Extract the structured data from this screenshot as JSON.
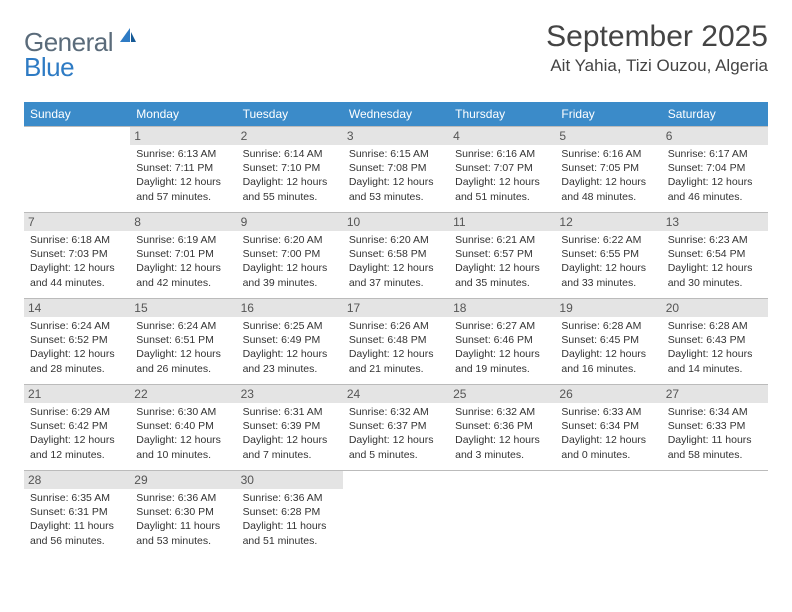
{
  "logo": {
    "text1": "General",
    "text2": "Blue"
  },
  "header": {
    "month_title": "September 2025",
    "location": "Ait Yahia, Tizi Ouzou, Algeria"
  },
  "day_headers": [
    "Sunday",
    "Monday",
    "Tuesday",
    "Wednesday",
    "Thursday",
    "Friday",
    "Saturday"
  ],
  "colors": {
    "header_bg": "#3b8bc9",
    "header_fg": "#ffffff",
    "daynum_bg": "#e4e4e4",
    "border": "#bbbbbb",
    "logo_gray": "#5a6b7a",
    "logo_blue": "#2e7bc4"
  },
  "weeks": [
    [
      {
        "n": "",
        "sunrise": "",
        "sunset": "",
        "daylight": "",
        "empty": true
      },
      {
        "n": "1",
        "sunrise": "Sunrise: 6:13 AM",
        "sunset": "Sunset: 7:11 PM",
        "daylight": "Daylight: 12 hours and 57 minutes."
      },
      {
        "n": "2",
        "sunrise": "Sunrise: 6:14 AM",
        "sunset": "Sunset: 7:10 PM",
        "daylight": "Daylight: 12 hours and 55 minutes."
      },
      {
        "n": "3",
        "sunrise": "Sunrise: 6:15 AM",
        "sunset": "Sunset: 7:08 PM",
        "daylight": "Daylight: 12 hours and 53 minutes."
      },
      {
        "n": "4",
        "sunrise": "Sunrise: 6:16 AM",
        "sunset": "Sunset: 7:07 PM",
        "daylight": "Daylight: 12 hours and 51 minutes."
      },
      {
        "n": "5",
        "sunrise": "Sunrise: 6:16 AM",
        "sunset": "Sunset: 7:05 PM",
        "daylight": "Daylight: 12 hours and 48 minutes."
      },
      {
        "n": "6",
        "sunrise": "Sunrise: 6:17 AM",
        "sunset": "Sunset: 7:04 PM",
        "daylight": "Daylight: 12 hours and 46 minutes."
      }
    ],
    [
      {
        "n": "7",
        "sunrise": "Sunrise: 6:18 AM",
        "sunset": "Sunset: 7:03 PM",
        "daylight": "Daylight: 12 hours and 44 minutes."
      },
      {
        "n": "8",
        "sunrise": "Sunrise: 6:19 AM",
        "sunset": "Sunset: 7:01 PM",
        "daylight": "Daylight: 12 hours and 42 minutes."
      },
      {
        "n": "9",
        "sunrise": "Sunrise: 6:20 AM",
        "sunset": "Sunset: 7:00 PM",
        "daylight": "Daylight: 12 hours and 39 minutes."
      },
      {
        "n": "10",
        "sunrise": "Sunrise: 6:20 AM",
        "sunset": "Sunset: 6:58 PM",
        "daylight": "Daylight: 12 hours and 37 minutes."
      },
      {
        "n": "11",
        "sunrise": "Sunrise: 6:21 AM",
        "sunset": "Sunset: 6:57 PM",
        "daylight": "Daylight: 12 hours and 35 minutes."
      },
      {
        "n": "12",
        "sunrise": "Sunrise: 6:22 AM",
        "sunset": "Sunset: 6:55 PM",
        "daylight": "Daylight: 12 hours and 33 minutes."
      },
      {
        "n": "13",
        "sunrise": "Sunrise: 6:23 AM",
        "sunset": "Sunset: 6:54 PM",
        "daylight": "Daylight: 12 hours and 30 minutes."
      }
    ],
    [
      {
        "n": "14",
        "sunrise": "Sunrise: 6:24 AM",
        "sunset": "Sunset: 6:52 PM",
        "daylight": "Daylight: 12 hours and 28 minutes."
      },
      {
        "n": "15",
        "sunrise": "Sunrise: 6:24 AM",
        "sunset": "Sunset: 6:51 PM",
        "daylight": "Daylight: 12 hours and 26 minutes."
      },
      {
        "n": "16",
        "sunrise": "Sunrise: 6:25 AM",
        "sunset": "Sunset: 6:49 PM",
        "daylight": "Daylight: 12 hours and 23 minutes."
      },
      {
        "n": "17",
        "sunrise": "Sunrise: 6:26 AM",
        "sunset": "Sunset: 6:48 PM",
        "daylight": "Daylight: 12 hours and 21 minutes."
      },
      {
        "n": "18",
        "sunrise": "Sunrise: 6:27 AM",
        "sunset": "Sunset: 6:46 PM",
        "daylight": "Daylight: 12 hours and 19 minutes."
      },
      {
        "n": "19",
        "sunrise": "Sunrise: 6:28 AM",
        "sunset": "Sunset: 6:45 PM",
        "daylight": "Daylight: 12 hours and 16 minutes."
      },
      {
        "n": "20",
        "sunrise": "Sunrise: 6:28 AM",
        "sunset": "Sunset: 6:43 PM",
        "daylight": "Daylight: 12 hours and 14 minutes."
      }
    ],
    [
      {
        "n": "21",
        "sunrise": "Sunrise: 6:29 AM",
        "sunset": "Sunset: 6:42 PM",
        "daylight": "Daylight: 12 hours and 12 minutes."
      },
      {
        "n": "22",
        "sunrise": "Sunrise: 6:30 AM",
        "sunset": "Sunset: 6:40 PM",
        "daylight": "Daylight: 12 hours and 10 minutes."
      },
      {
        "n": "23",
        "sunrise": "Sunrise: 6:31 AM",
        "sunset": "Sunset: 6:39 PM",
        "daylight": "Daylight: 12 hours and 7 minutes."
      },
      {
        "n": "24",
        "sunrise": "Sunrise: 6:32 AM",
        "sunset": "Sunset: 6:37 PM",
        "daylight": "Daylight: 12 hours and 5 minutes."
      },
      {
        "n": "25",
        "sunrise": "Sunrise: 6:32 AM",
        "sunset": "Sunset: 6:36 PM",
        "daylight": "Daylight: 12 hours and 3 minutes."
      },
      {
        "n": "26",
        "sunrise": "Sunrise: 6:33 AM",
        "sunset": "Sunset: 6:34 PM",
        "daylight": "Daylight: 12 hours and 0 minutes."
      },
      {
        "n": "27",
        "sunrise": "Sunrise: 6:34 AM",
        "sunset": "Sunset: 6:33 PM",
        "daylight": "Daylight: 11 hours and 58 minutes."
      }
    ],
    [
      {
        "n": "28",
        "sunrise": "Sunrise: 6:35 AM",
        "sunset": "Sunset: 6:31 PM",
        "daylight": "Daylight: 11 hours and 56 minutes."
      },
      {
        "n": "29",
        "sunrise": "Sunrise: 6:36 AM",
        "sunset": "Sunset: 6:30 PM",
        "daylight": "Daylight: 11 hours and 53 minutes."
      },
      {
        "n": "30",
        "sunrise": "Sunrise: 6:36 AM",
        "sunset": "Sunset: 6:28 PM",
        "daylight": "Daylight: 11 hours and 51 minutes."
      },
      {
        "n": "",
        "sunrise": "",
        "sunset": "",
        "daylight": "",
        "empty": true
      },
      {
        "n": "",
        "sunrise": "",
        "sunset": "",
        "daylight": "",
        "empty": true
      },
      {
        "n": "",
        "sunrise": "",
        "sunset": "",
        "daylight": "",
        "empty": true
      },
      {
        "n": "",
        "sunrise": "",
        "sunset": "",
        "daylight": "",
        "empty": true
      }
    ]
  ]
}
